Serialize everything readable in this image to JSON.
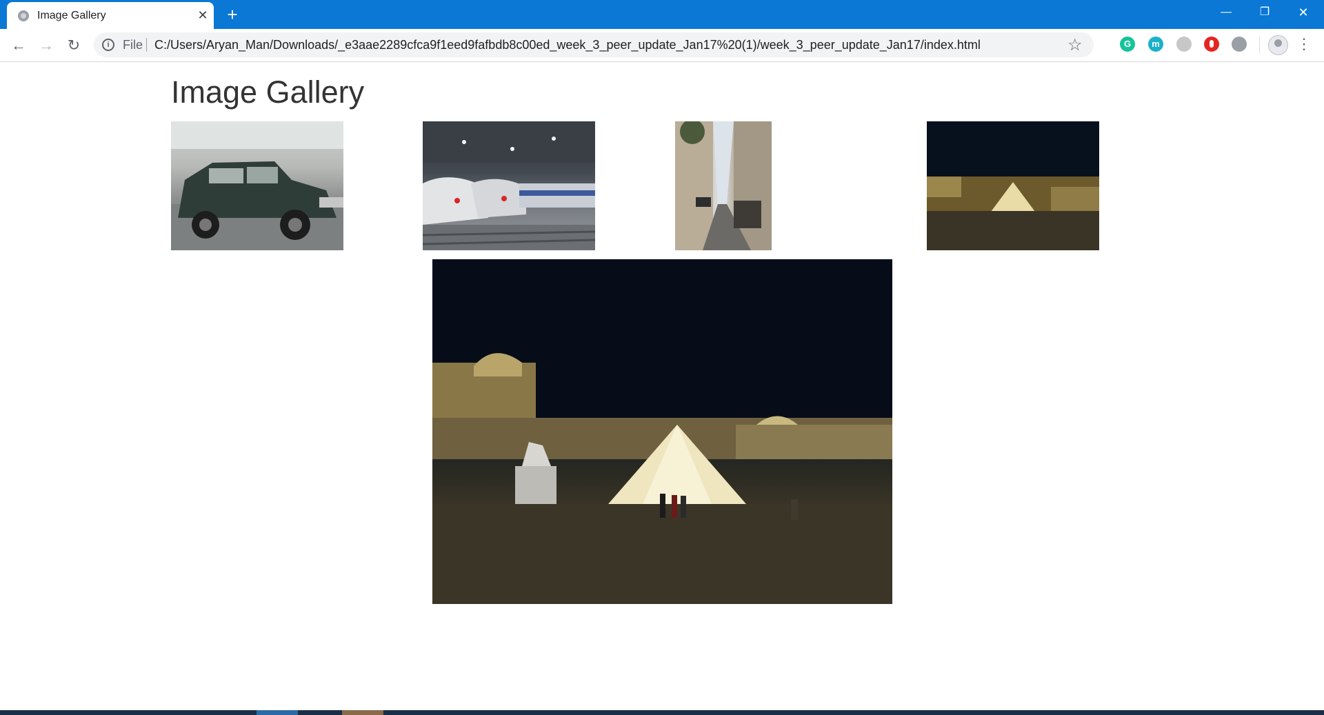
{
  "browser": {
    "tab": {
      "title": "Image Gallery",
      "close_glyph": "✕",
      "new_tab_glyph": "+"
    },
    "window_controls": {
      "minimize": "—",
      "restore": "❐",
      "close": "✕"
    },
    "toolbar": {
      "back_glyph": "←",
      "forward_glyph": "→",
      "reload_glyph": "↻",
      "info_glyph": "i",
      "scheme_label": "File",
      "url": "C:/Users/Aryan_Man/Downloads/_e3aae2289cfca9f1eed9fafbdb8c00ed_week_3_peer_update_Jan17%20(1)/week_3_peer_update_Jan17/index.html",
      "star_glyph": "☆",
      "menu_glyph": "⋮"
    },
    "extensions": [
      {
        "name": "grammarly-icon",
        "glyph": "G",
        "color": "#15c39a"
      },
      {
        "name": "m-extension-icon",
        "glyph": "m",
        "color": "#1ab1c9"
      },
      {
        "name": "dark-extension-icon",
        "glyph": "",
        "color": "#5f5f5f"
      },
      {
        "name": "red-hand-extension-icon",
        "glyph": "",
        "color": "#e52521"
      },
      {
        "name": "gray-extension-icon",
        "glyph": "",
        "color": "#9aa0a6"
      }
    ]
  },
  "page": {
    "title": "Image Gallery",
    "thumbnails": [
      {
        "subject": "green mini car parked on street"
      },
      {
        "subject": "high-speed trains at station platform"
      },
      {
        "subject": "narrow Paris street with parked cars"
      },
      {
        "subject": "Louvre pyramid at night"
      }
    ],
    "large_image": {
      "subject": "Louvre pyramid at night"
    }
  },
  "colors": {
    "tab_strip": "#0a78d4",
    "page_background": "#ffffff",
    "title_text": "#333333"
  }
}
